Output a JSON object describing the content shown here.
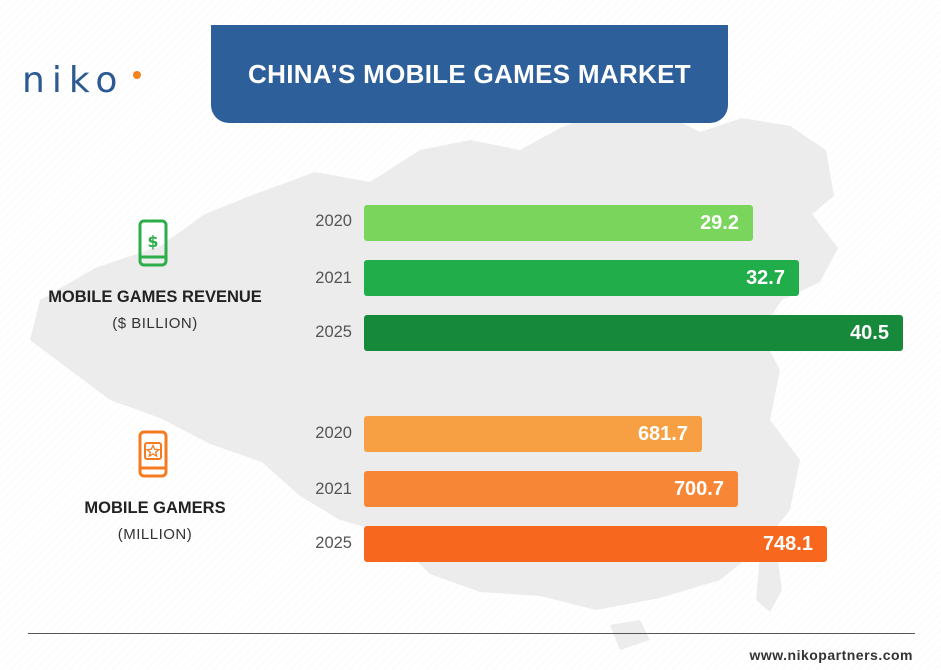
{
  "brand": {
    "logo_text": "NIKO",
    "website": "www.nikopartners.com"
  },
  "header": {
    "title": "CHINA’S MOBILE GAMES MARKET"
  },
  "colors": {
    "banner": "#2d5f9a",
    "revenue": [
      "#79d55b",
      "#22ad4b",
      "#17893b"
    ],
    "gamers": [
      "#f7a043",
      "#f78637",
      "#f8671e"
    ]
  },
  "sections": {
    "revenue": {
      "label": "MOBILE GAMES REVENUE",
      "unit": "($ BILLION)",
      "icon": "phone-dollar-icon"
    },
    "gamers": {
      "label": "MOBILE GAMERS",
      "unit": "(MILLION)",
      "icon": "phone-star-icon"
    }
  },
  "chart_data": [
    {
      "type": "bar",
      "orientation": "horizontal",
      "categories": [
        "2020",
        "2021",
        "2025"
      ],
      "values": [
        29.2,
        32.7,
        40.5
      ],
      "value_labels": [
        "29.2",
        "32.7",
        "40.5"
      ],
      "series_label": "MOBILE GAMES REVENUE",
      "unit": "($ BILLION)"
    },
    {
      "type": "bar",
      "orientation": "horizontal",
      "categories": [
        "2020",
        "2021",
        "2025"
      ],
      "values": [
        681.7,
        700.7,
        748.1
      ],
      "value_labels": [
        "681.7",
        "700.7",
        "748.1"
      ],
      "series_label": "MOBILE GAMERS",
      "unit": "(MILLION)"
    }
  ]
}
